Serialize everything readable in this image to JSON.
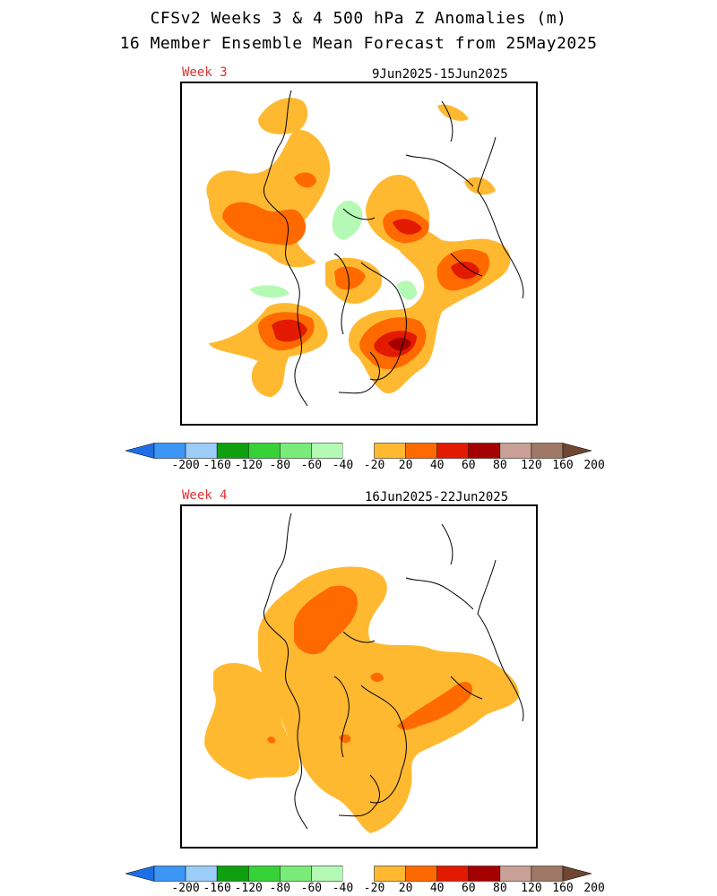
{
  "title": {
    "line1": "CFSv2 Weeks 3 & 4 500 hPa Z Anomalies (m)",
    "line2": "16 Member Ensemble Mean Forecast from 25May2025"
  },
  "panels": [
    {
      "label": "Week 3",
      "dates": "9Jun2025-15Jun2025"
    },
    {
      "label": "Week 4",
      "dates": "16Jun2025-22Jun2025"
    }
  ],
  "colorbar": {
    "levels": [
      "-200",
      "-160",
      "-120",
      "-80",
      "-60",
      "-40",
      "-20",
      "20",
      "40",
      "60",
      "80",
      "120",
      "160",
      "200"
    ],
    "colors": [
      "#1e6ee6",
      "#3c96f5",
      "#9ccdf9",
      "#0fa00f",
      "#37d237",
      "#78eb78",
      "#b4fab4",
      "#ffffff",
      "#ffb931",
      "#ff6a00",
      "#e11a00",
      "#a50000",
      "#c8a096",
      "#a07868",
      "#6e4632"
    ]
  },
  "anomaly_colors": {
    "pos20": "#ffb931",
    "pos40": "#ff6a00",
    "pos60": "#e11a00",
    "pos80": "#a50000",
    "neg20": "#b4fab4"
  }
}
